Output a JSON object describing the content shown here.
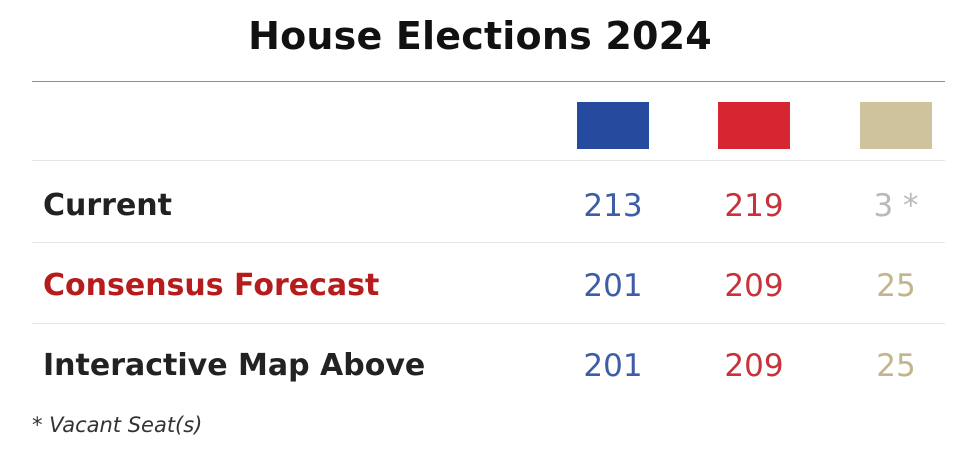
{
  "header": {
    "title": "House Elections 2024"
  },
  "legend": {
    "swatches": [
      {
        "name": "democrat-swatch",
        "color": "#264a9e"
      },
      {
        "name": "republican-swatch",
        "color": "#d62631"
      },
      {
        "name": "vacant-other-swatch",
        "color": "#cfc39d"
      }
    ]
  },
  "colors": {
    "democrat_text": "#3d5ea6",
    "republican_text": "#c8323a",
    "other_text": "#b9b9b9",
    "other_text_forecast": "#c2b48c",
    "highlight_label": "#b71c1c"
  },
  "table": {
    "rows": [
      {
        "label": "Current",
        "dem": "213",
        "rep": "219",
        "other": "3 *"
      },
      {
        "label": "Consensus Forecast",
        "dem": "201",
        "rep": "209",
        "other": "25"
      },
      {
        "label": "Interactive Map Above",
        "dem": "201",
        "rep": "209",
        "other": "25"
      }
    ]
  },
  "footnote": {
    "text": "* Vacant Seat(s)"
  }
}
